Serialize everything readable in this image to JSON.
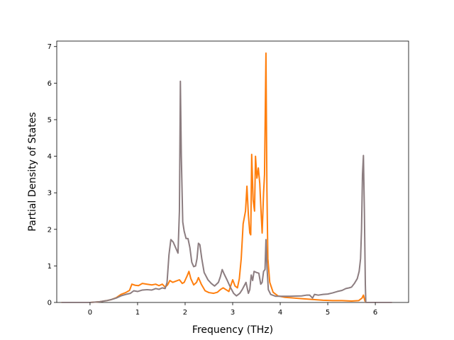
{
  "chart_data": {
    "type": "line",
    "title": "",
    "xlabel": "Frequency (THz)",
    "ylabel": "Partial Density of States",
    "xlim": [
      -0.7,
      6.7
    ],
    "ylim": [
      0,
      7.15
    ],
    "grid": false,
    "legend": "none",
    "x_ticks": [
      0,
      1,
      2,
      3,
      4,
      5,
      6
    ],
    "y_ticks": [
      0,
      1,
      2,
      3,
      4,
      5,
      6,
      7
    ],
    "series": [
      {
        "color": "#ff7f0e",
        "points": [
          [
            -0.6,
            0
          ],
          [
            0.0,
            0
          ],
          [
            0.2,
            0.02
          ],
          [
            0.35,
            0.05
          ],
          [
            0.45,
            0.08
          ],
          [
            0.55,
            0.13
          ],
          [
            0.65,
            0.22
          ],
          [
            0.75,
            0.27
          ],
          [
            0.83,
            0.33
          ],
          [
            0.88,
            0.5
          ],
          [
            0.95,
            0.47
          ],
          [
            1.02,
            0.46
          ],
          [
            1.1,
            0.52
          ],
          [
            1.2,
            0.5
          ],
          [
            1.3,
            0.48
          ],
          [
            1.38,
            0.5
          ],
          [
            1.45,
            0.46
          ],
          [
            1.52,
            0.5
          ],
          [
            1.58,
            0.42
          ],
          [
            1.63,
            0.48
          ],
          [
            1.68,
            0.6
          ],
          [
            1.74,
            0.55
          ],
          [
            1.8,
            0.58
          ],
          [
            1.88,
            0.62
          ],
          [
            1.94,
            0.52
          ],
          [
            1.98,
            0.55
          ],
          [
            2.04,
            0.72
          ],
          [
            2.08,
            0.85
          ],
          [
            2.12,
            0.65
          ],
          [
            2.18,
            0.48
          ],
          [
            2.24,
            0.55
          ],
          [
            2.28,
            0.68
          ],
          [
            2.34,
            0.5
          ],
          [
            2.42,
            0.32
          ],
          [
            2.5,
            0.27
          ],
          [
            2.6,
            0.25
          ],
          [
            2.68,
            0.28
          ],
          [
            2.75,
            0.36
          ],
          [
            2.8,
            0.4
          ],
          [
            2.86,
            0.35
          ],
          [
            2.92,
            0.3
          ],
          [
            2.97,
            0.5
          ],
          [
            3.0,
            0.62
          ],
          [
            3.05,
            0.45
          ],
          [
            3.1,
            0.4
          ],
          [
            3.14,
            0.65
          ],
          [
            3.18,
            1.2
          ],
          [
            3.22,
            2.15
          ],
          [
            3.27,
            2.5
          ],
          [
            3.3,
            3.18
          ],
          [
            3.33,
            2.4
          ],
          [
            3.36,
            1.9
          ],
          [
            3.38,
            1.85
          ],
          [
            3.4,
            4.05
          ],
          [
            3.43,
            2.8
          ],
          [
            3.46,
            2.5
          ],
          [
            3.48,
            4.0
          ],
          [
            3.51,
            3.4
          ],
          [
            3.54,
            3.68
          ],
          [
            3.57,
            3.25
          ],
          [
            3.6,
            2.4
          ],
          [
            3.62,
            1.9
          ],
          [
            3.65,
            3.0
          ],
          [
            3.67,
            3.5
          ],
          [
            3.7,
            6.82
          ],
          [
            3.72,
            3.1
          ],
          [
            3.74,
            1.2
          ],
          [
            3.78,
            0.55
          ],
          [
            3.85,
            0.28
          ],
          [
            3.95,
            0.18
          ],
          [
            4.1,
            0.14
          ],
          [
            4.3,
            0.12
          ],
          [
            4.5,
            0.1
          ],
          [
            4.7,
            0.08
          ],
          [
            4.9,
            0.06
          ],
          [
            5.1,
            0.05
          ],
          [
            5.3,
            0.05
          ],
          [
            5.5,
            0.04
          ],
          [
            5.65,
            0.05
          ],
          [
            5.72,
            0.12
          ],
          [
            5.75,
            0.2
          ],
          [
            5.78,
            0.05
          ],
          [
            5.8,
            0
          ],
          [
            6.35,
            0
          ]
        ]
      },
      {
        "color": "#8c7d80",
        "points": [
          [
            -0.6,
            0
          ],
          [
            0.0,
            0
          ],
          [
            0.2,
            0.02
          ],
          [
            0.35,
            0.05
          ],
          [
            0.45,
            0.08
          ],
          [
            0.55,
            0.12
          ],
          [
            0.65,
            0.18
          ],
          [
            0.75,
            0.22
          ],
          [
            0.85,
            0.25
          ],
          [
            0.92,
            0.32
          ],
          [
            1.0,
            0.3
          ],
          [
            1.1,
            0.34
          ],
          [
            1.2,
            0.35
          ],
          [
            1.3,
            0.34
          ],
          [
            1.38,
            0.38
          ],
          [
            1.45,
            0.36
          ],
          [
            1.52,
            0.4
          ],
          [
            1.58,
            0.38
          ],
          [
            1.62,
            0.55
          ],
          [
            1.66,
            1.3
          ],
          [
            1.7,
            1.72
          ],
          [
            1.75,
            1.65
          ],
          [
            1.8,
            1.5
          ],
          [
            1.85,
            1.35
          ],
          [
            1.88,
            2.5
          ],
          [
            1.9,
            6.05
          ],
          [
            1.92,
            4.0
          ],
          [
            1.95,
            2.2
          ],
          [
            1.98,
            1.95
          ],
          [
            2.02,
            1.75
          ],
          [
            2.06,
            1.75
          ],
          [
            2.1,
            1.5
          ],
          [
            2.14,
            1.1
          ],
          [
            2.18,
            0.98
          ],
          [
            2.22,
            1.0
          ],
          [
            2.25,
            1.2
          ],
          [
            2.28,
            1.62
          ],
          [
            2.31,
            1.58
          ],
          [
            2.35,
            1.2
          ],
          [
            2.4,
            0.82
          ],
          [
            2.48,
            0.62
          ],
          [
            2.55,
            0.52
          ],
          [
            2.62,
            0.45
          ],
          [
            2.7,
            0.55
          ],
          [
            2.74,
            0.7
          ],
          [
            2.78,
            0.9
          ],
          [
            2.82,
            0.78
          ],
          [
            2.88,
            0.62
          ],
          [
            2.95,
            0.42
          ],
          [
            3.02,
            0.25
          ],
          [
            3.08,
            0.18
          ],
          [
            3.15,
            0.25
          ],
          [
            3.2,
            0.35
          ],
          [
            3.28,
            0.55
          ],
          [
            3.33,
            0.25
          ],
          [
            3.36,
            0.35
          ],
          [
            3.39,
            0.75
          ],
          [
            3.42,
            0.6
          ],
          [
            3.45,
            0.85
          ],
          [
            3.5,
            0.82
          ],
          [
            3.55,
            0.8
          ],
          [
            3.59,
            0.5
          ],
          [
            3.62,
            0.55
          ],
          [
            3.65,
            0.85
          ],
          [
            3.68,
            0.9
          ],
          [
            3.7,
            1.72
          ],
          [
            3.72,
            1.0
          ],
          [
            3.75,
            0.35
          ],
          [
            3.8,
            0.22
          ],
          [
            3.9,
            0.17
          ],
          [
            4.0,
            0.17
          ],
          [
            4.2,
            0.17
          ],
          [
            4.45,
            0.18
          ],
          [
            4.55,
            0.2
          ],
          [
            4.62,
            0.2
          ],
          [
            4.68,
            0.12
          ],
          [
            4.72,
            0.22
          ],
          [
            4.8,
            0.2
          ],
          [
            4.9,
            0.22
          ],
          [
            5.0,
            0.23
          ],
          [
            5.1,
            0.26
          ],
          [
            5.2,
            0.3
          ],
          [
            5.3,
            0.33
          ],
          [
            5.38,
            0.38
          ],
          [
            5.45,
            0.4
          ],
          [
            5.5,
            0.42
          ],
          [
            5.56,
            0.52
          ],
          [
            5.62,
            0.65
          ],
          [
            5.66,
            0.85
          ],
          [
            5.69,
            1.2
          ],
          [
            5.71,
            2.0
          ],
          [
            5.73,
            3.5
          ],
          [
            5.75,
            4.02
          ],
          [
            5.77,
            2.5
          ],
          [
            5.79,
            0.5
          ],
          [
            5.8,
            0
          ],
          [
            6.35,
            0
          ]
        ]
      }
    ]
  }
}
